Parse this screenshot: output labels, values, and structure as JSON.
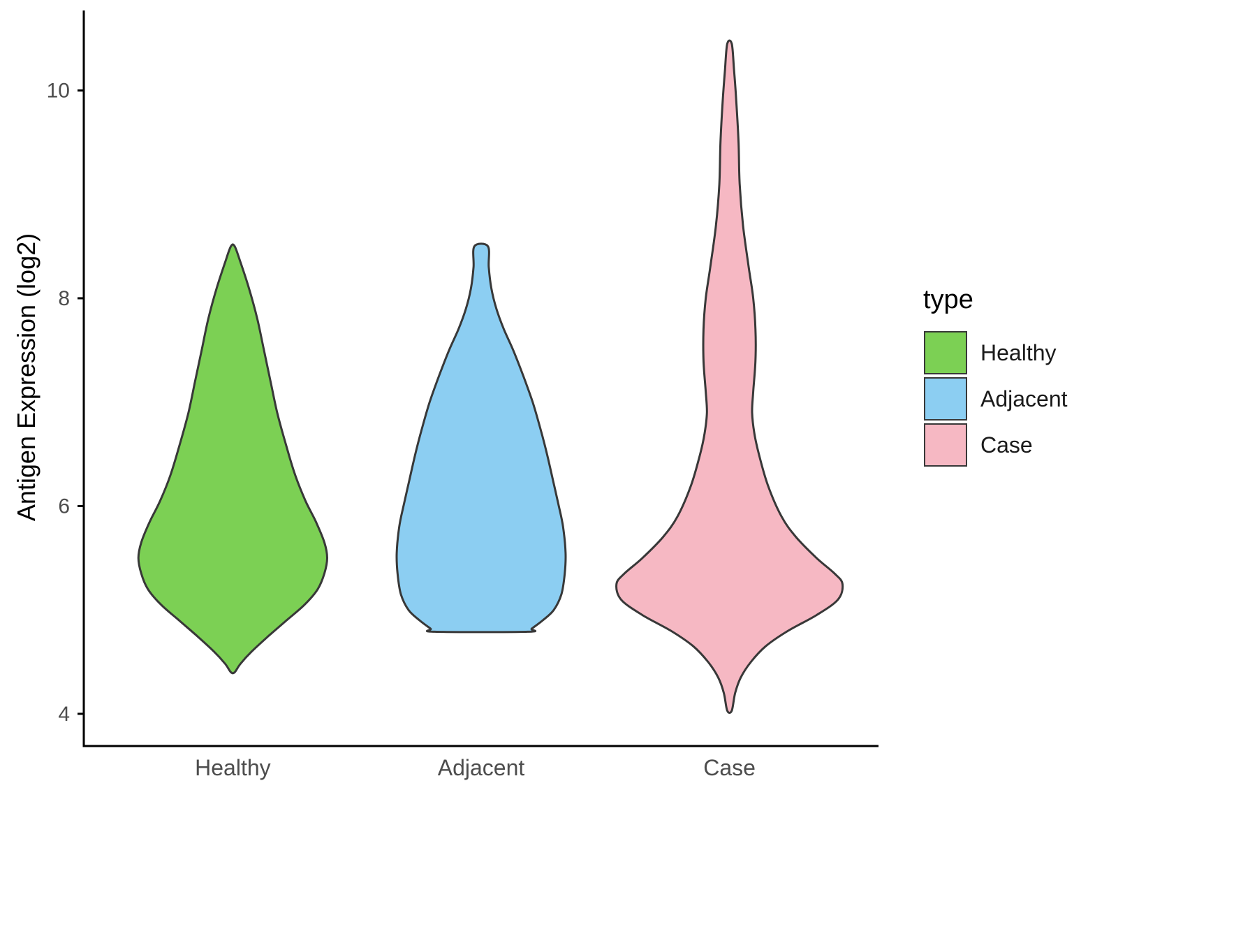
{
  "page": {
    "background": "#FFFFFF"
  },
  "chart_data": {
    "type": "violin",
    "title": "",
    "xlabel": "",
    "ylabel": "Antigen Expression (log2)",
    "ylim": [
      3.69,
      10.77
    ],
    "yticks": [
      4,
      6,
      8,
      10
    ],
    "categories": [
      "Healthy",
      "Adjacent",
      "Case"
    ],
    "grid": false,
    "legend_position": "right",
    "axis_color": "#000000",
    "tick_label_color": "#4D4D4D",
    "outline_color": "#383838",
    "legend": {
      "title": "type",
      "entries": [
        {
          "label": "Healthy",
          "color": "#7CD054"
        },
        {
          "label": "Adjacent",
          "color": "#8CCEF2"
        },
        {
          "label": "Case",
          "color": "#F6B8C3"
        }
      ]
    },
    "series": [
      {
        "name": "Healthy",
        "color": "#7CD054",
        "value_range": [
          4.4,
          8.5
        ],
        "peak_value": 5.5,
        "max_width": 0.76,
        "profile": [
          [
            8.5,
            0.02
          ],
          [
            8.35,
            0.08
          ],
          [
            8.1,
            0.17
          ],
          [
            7.8,
            0.26
          ],
          [
            7.5,
            0.33
          ],
          [
            7.2,
            0.4
          ],
          [
            6.9,
            0.47
          ],
          [
            6.6,
            0.56
          ],
          [
            6.3,
            0.66
          ],
          [
            6.05,
            0.77
          ],
          [
            5.85,
            0.88
          ],
          [
            5.65,
            0.97
          ],
          [
            5.5,
            1.0
          ],
          [
            5.35,
            0.97
          ],
          [
            5.2,
            0.9
          ],
          [
            5.05,
            0.76
          ],
          [
            4.9,
            0.57
          ],
          [
            4.75,
            0.38
          ],
          [
            4.6,
            0.2
          ],
          [
            4.48,
            0.08
          ],
          [
            4.4,
            0.02
          ]
        ]
      },
      {
        "name": "Adjacent",
        "color": "#8CCEF2",
        "value_range": [
          4.79,
          8.5
        ],
        "peak_value": 5.55,
        "max_width": 0.68,
        "profile": [
          [
            8.5,
            0.08
          ],
          [
            8.3,
            0.09
          ],
          [
            8.1,
            0.12
          ],
          [
            7.9,
            0.18
          ],
          [
            7.7,
            0.27
          ],
          [
            7.5,
            0.38
          ],
          [
            7.25,
            0.5
          ],
          [
            7.0,
            0.61
          ],
          [
            6.75,
            0.7
          ],
          [
            6.5,
            0.78
          ],
          [
            6.25,
            0.85
          ],
          [
            6.0,
            0.92
          ],
          [
            5.8,
            0.97
          ],
          [
            5.55,
            1.0
          ],
          [
            5.35,
            0.99
          ],
          [
            5.15,
            0.95
          ],
          [
            5.0,
            0.86
          ],
          [
            4.9,
            0.73
          ],
          [
            4.82,
            0.6
          ],
          [
            4.79,
            0.55
          ]
        ]
      },
      {
        "name": "Case",
        "color": "#F6B8C3",
        "value_range": [
          4.03,
          10.45
        ],
        "peak_value": 5.25,
        "max_width": 0.91,
        "profile": [
          [
            10.45,
            0.02
          ],
          [
            10.2,
            0.04
          ],
          [
            9.9,
            0.06
          ],
          [
            9.5,
            0.08
          ],
          [
            9.1,
            0.09
          ],
          [
            8.7,
            0.12
          ],
          [
            8.3,
            0.17
          ],
          [
            8.0,
            0.21
          ],
          [
            7.7,
            0.23
          ],
          [
            7.4,
            0.23
          ],
          [
            7.1,
            0.21
          ],
          [
            6.9,
            0.2
          ],
          [
            6.7,
            0.22
          ],
          [
            6.5,
            0.26
          ],
          [
            6.2,
            0.34
          ],
          [
            5.9,
            0.46
          ],
          [
            5.7,
            0.59
          ],
          [
            5.5,
            0.77
          ],
          [
            5.35,
            0.93
          ],
          [
            5.25,
            1.0
          ],
          [
            5.1,
            0.96
          ],
          [
            4.95,
            0.77
          ],
          [
            4.8,
            0.52
          ],
          [
            4.65,
            0.32
          ],
          [
            4.5,
            0.19
          ],
          [
            4.35,
            0.1
          ],
          [
            4.2,
            0.05
          ],
          [
            4.03,
            0.02
          ]
        ]
      }
    ]
  }
}
